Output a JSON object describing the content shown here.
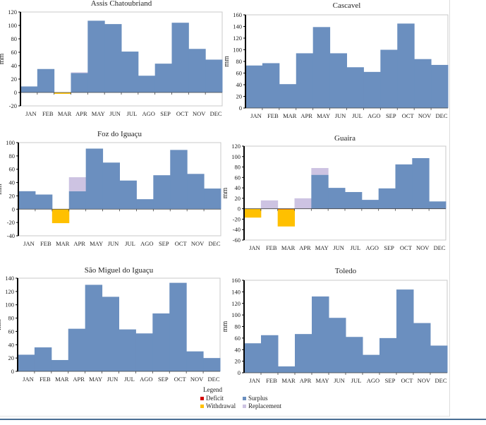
{
  "colors": {
    "surplus": "#6b8fbf",
    "withdrawal": "#ffc000",
    "replacement": "#cdc3e2",
    "deficit": "#d40000"
  },
  "legend": {
    "title": "Legend",
    "items": [
      {
        "key": "deficit",
        "label": "Deficit"
      },
      {
        "key": "surplus",
        "label": "Surplus"
      },
      {
        "key": "withdrawal",
        "label": "Withdrawal"
      },
      {
        "key": "replacement",
        "label": "Replacement"
      }
    ]
  },
  "chart_data": [
    {
      "type": "bar",
      "title": "Assis Chatoubriand",
      "ylabel": "mm",
      "xlabel": "",
      "categories": [
        "JAN",
        "FEB",
        "MAR",
        "APR",
        "MAY",
        "JUN",
        "JUL",
        "AGO",
        "SEP",
        "OCT",
        "NOV",
        "DEC"
      ],
      "ylim": [
        -20,
        120
      ],
      "yticks": [
        -20,
        0,
        20,
        40,
        60,
        80,
        100,
        120
      ],
      "series": [
        {
          "name": "Surplus",
          "key": "surplus",
          "values": [
            9,
            35,
            0,
            29,
            107,
            102,
            61,
            25,
            43,
            104,
            65,
            49
          ]
        },
        {
          "name": "Replacement",
          "key": "replacement",
          "values": [
            0,
            0,
            0,
            1,
            0,
            0,
            0,
            0,
            0,
            0,
            0,
            0
          ]
        },
        {
          "name": "Deficit",
          "key": "deficit",
          "values": [
            0,
            0,
            0,
            0,
            0,
            0,
            0,
            0,
            0,
            0,
            0,
            0
          ]
        },
        {
          "name": "Withdrawal",
          "key": "withdrawal",
          "values": [
            0,
            0,
            -2,
            0,
            0,
            0,
            0,
            0,
            0,
            0,
            0,
            0
          ]
        }
      ]
    },
    {
      "type": "bar",
      "title": "Cascavel",
      "ylabel": "mm",
      "xlabel": "",
      "categories": [
        "JAN",
        "FEB",
        "MAR",
        "APR",
        "MAY",
        "JUN",
        "JUL",
        "AGO",
        "SEP",
        "OCT",
        "NOV",
        "DEC"
      ],
      "ylim": [
        0,
        160
      ],
      "yticks": [
        0,
        20,
        40,
        60,
        80,
        100,
        120,
        140,
        160
      ],
      "series": [
        {
          "name": "Surplus",
          "key": "surplus",
          "values": [
            73,
            77,
            41,
            94,
            139,
            94,
            70,
            62,
            100,
            145,
            84,
            74
          ]
        },
        {
          "name": "Replacement",
          "key": "replacement",
          "values": [
            0,
            0,
            0,
            0,
            0,
            0,
            0,
            0,
            0,
            0,
            0,
            0
          ]
        },
        {
          "name": "Deficit",
          "key": "deficit",
          "values": [
            0,
            0,
            0,
            0,
            0,
            0,
            0,
            0,
            0,
            0,
            0,
            0
          ]
        },
        {
          "name": "Withdrawal",
          "key": "withdrawal",
          "values": [
            0,
            0,
            0,
            0,
            0,
            0,
            0,
            0,
            0,
            0,
            0,
            0
          ]
        }
      ]
    },
    {
      "type": "bar",
      "title": "Foz do Iguaçu",
      "ylabel": "mm",
      "xlabel": "",
      "categories": [
        "JAN",
        "FEB",
        "MAR",
        "APR",
        "MAY",
        "JUN",
        "JUL",
        "AGO",
        "SEP",
        "OCT",
        "NOV",
        "DEC"
      ],
      "ylim": [
        -40,
        100
      ],
      "yticks": [
        -40,
        -20,
        0,
        20,
        40,
        60,
        80,
        100
      ],
      "series": [
        {
          "name": "Surplus",
          "key": "surplus",
          "values": [
            27,
            22,
            0,
            27,
            91,
            70,
            43,
            15,
            51,
            89,
            53,
            31
          ]
        },
        {
          "name": "Replacement",
          "key": "replacement",
          "values": [
            0,
            0,
            0,
            21,
            0,
            0,
            0,
            0,
            0,
            0,
            0,
            0
          ]
        },
        {
          "name": "Deficit",
          "key": "deficit",
          "values": [
            0,
            0,
            0,
            0,
            0,
            0,
            0,
            0,
            0,
            0,
            0,
            0
          ]
        },
        {
          "name": "Withdrawal",
          "key": "withdrawal",
          "values": [
            0,
            0,
            -21,
            0,
            0,
            0,
            0,
            0,
            0,
            0,
            0,
            0
          ]
        }
      ]
    },
    {
      "type": "bar",
      "title": "Guaira",
      "ylabel": "mm",
      "xlabel": "",
      "categories": [
        "JAN",
        "FEB",
        "MAR",
        "APR",
        "MAY",
        "JUN",
        "JUL",
        "AGO",
        "SEP",
        "OCT",
        "NOV",
        "DEC"
      ],
      "ylim": [
        -60,
        120
      ],
      "yticks": [
        -60,
        -40,
        -20,
        0,
        20,
        40,
        60,
        80,
        100,
        120
      ],
      "series": [
        {
          "name": "Surplus",
          "key": "surplus",
          "values": [
            0,
            0,
            0,
            0,
            65,
            40,
            32,
            17,
            39,
            85,
            97,
            14
          ]
        },
        {
          "name": "Replacement",
          "key": "replacement",
          "values": [
            0,
            16,
            0,
            20,
            13,
            0,
            0,
            0,
            0,
            0,
            0,
            0
          ]
        },
        {
          "name": "Deficit",
          "key": "deficit",
          "values": [
            0,
            0,
            -1,
            0,
            0,
            0,
            0,
            0,
            0,
            0,
            0,
            0
          ]
        },
        {
          "name": "Withdrawal",
          "key": "withdrawal",
          "values": [
            -17,
            0,
            -33,
            0,
            0,
            0,
            0,
            0,
            0,
            0,
            0,
            0
          ]
        }
      ]
    },
    {
      "type": "bar",
      "title": "São Miguel do Iguaçu",
      "ylabel": "mm",
      "xlabel": "",
      "categories": [
        "JAN",
        "FEB",
        "MAR",
        "APR",
        "MAY",
        "JUN",
        "JUL",
        "AGO",
        "SEP",
        "OCT",
        "NOV",
        "DEC"
      ],
      "ylim": [
        0,
        140
      ],
      "yticks": [
        0,
        20,
        40,
        60,
        80,
        100,
        120,
        140
      ],
      "series": [
        {
          "name": "Surplus",
          "key": "surplus",
          "values": [
            25,
            36,
            17,
            64,
            130,
            112,
            63,
            57,
            87,
            133,
            30,
            20
          ]
        },
        {
          "name": "Replacement",
          "key": "replacement",
          "values": [
            0,
            0,
            0,
            0,
            0,
            0,
            0,
            0,
            0,
            0,
            0,
            0
          ]
        },
        {
          "name": "Deficit",
          "key": "deficit",
          "values": [
            0,
            0,
            0,
            0,
            0,
            0,
            0,
            0,
            0,
            0,
            0,
            0
          ]
        },
        {
          "name": "Withdrawal",
          "key": "withdrawal",
          "values": [
            0,
            0,
            0,
            0,
            0,
            0,
            0,
            0,
            0,
            0,
            0,
            0
          ]
        }
      ]
    },
    {
      "type": "bar",
      "title": "Toledo",
      "ylabel": "mm",
      "xlabel": "",
      "categories": [
        "JAN",
        "FEB",
        "MAR",
        "APR",
        "MAY",
        "JUN",
        "JUL",
        "AGO",
        "SEP",
        "OCT",
        "NOV",
        "DEC"
      ],
      "ylim": [
        0,
        160
      ],
      "yticks": [
        0,
        20,
        40,
        60,
        80,
        100,
        120,
        140,
        160
      ],
      "series": [
        {
          "name": "Surplus",
          "key": "surplus",
          "values": [
            51,
            65,
            11,
            67,
            132,
            95,
            62,
            31,
            60,
            144,
            86,
            47
          ]
        },
        {
          "name": "Replacement",
          "key": "replacement",
          "values": [
            0,
            0,
            0,
            0,
            0,
            0,
            0,
            0,
            0,
            0,
            0,
            0
          ]
        },
        {
          "name": "Deficit",
          "key": "deficit",
          "values": [
            0,
            0,
            0,
            0,
            0,
            0,
            0,
            0,
            0,
            0,
            0,
            0
          ]
        },
        {
          "name": "Withdrawal",
          "key": "withdrawal",
          "values": [
            0,
            0,
            0,
            0,
            0,
            0,
            0,
            0,
            0,
            0,
            0,
            0
          ]
        }
      ]
    }
  ]
}
